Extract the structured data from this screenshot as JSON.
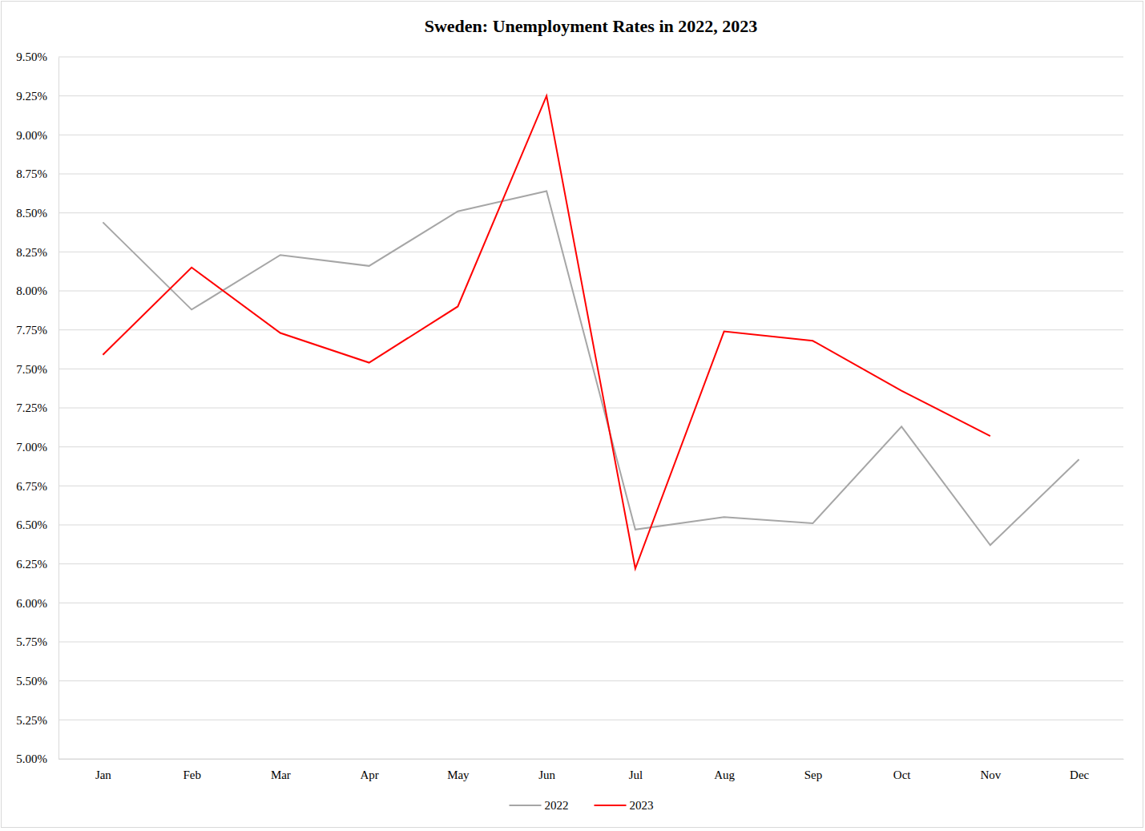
{
  "chart_data": {
    "type": "line",
    "title": "Sweden: Unemployment Rates in 2022, 2023",
    "categories": [
      "Jan",
      "Feb",
      "Mar",
      "Apr",
      "May",
      "Jun",
      "Jul",
      "Aug",
      "Sep",
      "Oct",
      "Nov",
      "Dec"
    ],
    "series": [
      {
        "name": "2022",
        "color": "#a6a6a6",
        "values": [
          8.44,
          7.88,
          8.23,
          8.16,
          8.51,
          8.64,
          6.47,
          6.55,
          6.51,
          7.13,
          6.37,
          6.92
        ]
      },
      {
        "name": "2023",
        "color": "#ff0000",
        "values": [
          7.59,
          8.15,
          7.73,
          7.54,
          7.9,
          9.25,
          6.22,
          7.74,
          7.68,
          7.36,
          7.07,
          null
        ]
      }
    ],
    "ylim": [
      5,
      9.5
    ],
    "yticks": [
      {
        "value": 5,
        "label": "5.00%"
      },
      {
        "value": 5.25,
        "label": "5.25%"
      },
      {
        "value": 5.5,
        "label": "5.50%"
      },
      {
        "value": 5.75,
        "label": "5.75%"
      },
      {
        "value": 6,
        "label": "6.00%"
      },
      {
        "value": 6.25,
        "label": "6.25%"
      },
      {
        "value": 6.5,
        "label": "6.50%"
      },
      {
        "value": 6.75,
        "label": "6.75%"
      },
      {
        "value": 7,
        "label": "7.00%"
      },
      {
        "value": 7.25,
        "label": "7.25%"
      },
      {
        "value": 7.5,
        "label": "7.50%"
      },
      {
        "value": 7.75,
        "label": "7.75%"
      },
      {
        "value": 8,
        "label": "8.00%"
      },
      {
        "value": 8.25,
        "label": "8.25%"
      },
      {
        "value": 8.5,
        "label": "8.50%"
      },
      {
        "value": 8.75,
        "label": "8.75%"
      },
      {
        "value": 9,
        "label": "9.00%"
      },
      {
        "value": 9.25,
        "label": "9.25%"
      },
      {
        "value": 9.5,
        "label": "9.50%"
      }
    ],
    "grid": true,
    "legend": "bottom"
  }
}
